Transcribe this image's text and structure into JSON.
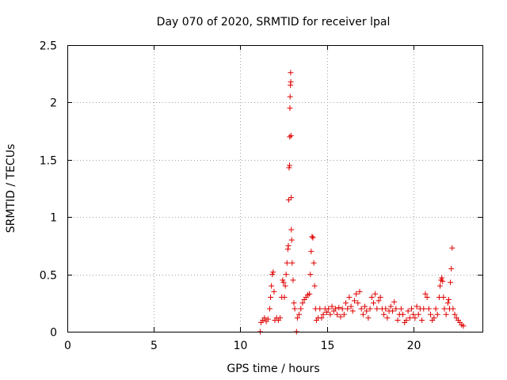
{
  "chart_data": {
    "type": "scatter",
    "title": "Day 070 of 2020, SRMTID for receiver lpal",
    "xlabel": "GPS time / hours",
    "ylabel": "SRMTID / TECUs",
    "xlim": [
      0,
      24
    ],
    "ylim": [
      0,
      2.5
    ],
    "xticks": [
      0,
      5,
      10,
      15,
      20
    ],
    "yticks": [
      0,
      0.5,
      1,
      1.5,
      2,
      2.5
    ],
    "xtick_labels": [
      "0",
      "5",
      "10",
      "15",
      "20"
    ],
    "ytick_labels": [
      "0",
      "0.5",
      "1",
      "1.5",
      "2",
      "2.5"
    ],
    "grid": true,
    "marker": "+",
    "color": "#e00000",
    "series": [
      {
        "name": "SRMTID",
        "points": [
          [
            11.15,
            0.0
          ],
          [
            11.2,
            0.08
          ],
          [
            11.3,
            0.1
          ],
          [
            11.4,
            0.12
          ],
          [
            11.5,
            0.09
          ],
          [
            11.6,
            0.11
          ],
          [
            11.7,
            0.2
          ],
          [
            11.75,
            0.3
          ],
          [
            11.8,
            0.4
          ],
          [
            11.85,
            0.5
          ],
          [
            11.9,
            0.52
          ],
          [
            11.95,
            0.35
          ],
          [
            12.0,
            0.1
          ],
          [
            12.1,
            0.12
          ],
          [
            12.2,
            0.1
          ],
          [
            12.3,
            0.12
          ],
          [
            12.4,
            0.3
          ],
          [
            12.45,
            0.45
          ],
          [
            12.5,
            0.43
          ],
          [
            12.55,
            0.3
          ],
          [
            12.6,
            0.4
          ],
          [
            12.65,
            0.5
          ],
          [
            12.7,
            0.6
          ],
          [
            12.75,
            0.72
          ],
          [
            12.78,
            0.75
          ],
          [
            12.8,
            1.15
          ],
          [
            12.82,
            1.43
          ],
          [
            12.85,
            1.45
          ],
          [
            12.86,
            1.7
          ],
          [
            12.87,
            1.95
          ],
          [
            12.88,
            2.05
          ],
          [
            12.9,
            2.15
          ],
          [
            12.91,
            2.26
          ],
          [
            12.92,
            2.18
          ],
          [
            12.93,
            1.71
          ],
          [
            12.94,
            1.17
          ],
          [
            12.95,
            0.89
          ],
          [
            12.97,
            0.8
          ],
          [
            13.0,
            0.6
          ],
          [
            13.05,
            0.45
          ],
          [
            13.1,
            0.25
          ],
          [
            13.15,
            0.2
          ],
          [
            13.25,
            0.0
          ],
          [
            13.3,
            0.12
          ],
          [
            13.4,
            0.15
          ],
          [
            13.5,
            0.2
          ],
          [
            13.6,
            0.25
          ],
          [
            13.7,
            0.28
          ],
          [
            13.8,
            0.3
          ],
          [
            13.9,
            0.32
          ],
          [
            14.0,
            0.33
          ],
          [
            14.05,
            0.5
          ],
          [
            14.1,
            0.7
          ],
          [
            14.15,
            0.83
          ],
          [
            14.2,
            0.82
          ],
          [
            14.25,
            0.6
          ],
          [
            14.3,
            0.4
          ],
          [
            14.35,
            0.2
          ],
          [
            14.4,
            0.1
          ],
          [
            14.5,
            0.12
          ],
          [
            14.6,
            0.2
          ],
          [
            14.7,
            0.12
          ],
          [
            14.8,
            0.15
          ],
          [
            14.9,
            0.2
          ],
          [
            15.0,
            0.17
          ],
          [
            15.1,
            0.2
          ],
          [
            15.2,
            0.15
          ],
          [
            15.3,
            0.22
          ],
          [
            15.4,
            0.18
          ],
          [
            15.5,
            0.2
          ],
          [
            15.6,
            0.15
          ],
          [
            15.7,
            0.21
          ],
          [
            15.8,
            0.13
          ],
          [
            15.9,
            0.2
          ],
          [
            16.0,
            0.15
          ],
          [
            16.1,
            0.25
          ],
          [
            16.2,
            0.2
          ],
          [
            16.3,
            0.3
          ],
          [
            16.4,
            0.22
          ],
          [
            16.5,
            0.18
          ],
          [
            16.6,
            0.27
          ],
          [
            16.7,
            0.33
          ],
          [
            16.8,
            0.25
          ],
          [
            16.9,
            0.35
          ],
          [
            17.0,
            0.2
          ],
          [
            17.1,
            0.15
          ],
          [
            17.2,
            0.22
          ],
          [
            17.3,
            0.18
          ],
          [
            17.4,
            0.12
          ],
          [
            17.5,
            0.2
          ],
          [
            17.6,
            0.3
          ],
          [
            17.7,
            0.25
          ],
          [
            17.8,
            0.33
          ],
          [
            17.9,
            0.2
          ],
          [
            18.0,
            0.27
          ],
          [
            18.1,
            0.3
          ],
          [
            18.2,
            0.2
          ],
          [
            18.3,
            0.15
          ],
          [
            18.4,
            0.2
          ],
          [
            18.5,
            0.12
          ],
          [
            18.6,
            0.18
          ],
          [
            18.7,
            0.22
          ],
          [
            18.8,
            0.18
          ],
          [
            18.9,
            0.26
          ],
          [
            19.0,
            0.2
          ],
          [
            19.1,
            0.1
          ],
          [
            19.2,
            0.15
          ],
          [
            19.3,
            0.2
          ],
          [
            19.4,
            0.15
          ],
          [
            19.5,
            0.08
          ],
          [
            19.6,
            0.1
          ],
          [
            19.7,
            0.18
          ],
          [
            19.8,
            0.12
          ],
          [
            19.9,
            0.2
          ],
          [
            20.0,
            0.15
          ],
          [
            20.1,
            0.12
          ],
          [
            20.2,
            0.22
          ],
          [
            20.3,
            0.15
          ],
          [
            20.4,
            0.2
          ],
          [
            20.5,
            0.1
          ],
          [
            20.6,
            0.2
          ],
          [
            20.7,
            0.33
          ],
          [
            20.8,
            0.3
          ],
          [
            20.9,
            0.2
          ],
          [
            21.0,
            0.15
          ],
          [
            21.1,
            0.1
          ],
          [
            21.2,
            0.12
          ],
          [
            21.3,
            0.2
          ],
          [
            21.4,
            0.15
          ],
          [
            21.5,
            0.3
          ],
          [
            21.55,
            0.4
          ],
          [
            21.6,
            0.45
          ],
          [
            21.65,
            0.47
          ],
          [
            21.7,
            0.44
          ],
          [
            21.75,
            0.3
          ],
          [
            21.8,
            0.2
          ],
          [
            21.9,
            0.15
          ],
          [
            22.0,
            0.25
          ],
          [
            22.05,
            0.28
          ],
          [
            22.1,
            0.2
          ],
          [
            22.15,
            0.43
          ],
          [
            22.2,
            0.55
          ],
          [
            22.25,
            0.73
          ],
          [
            22.3,
            0.2
          ],
          [
            22.4,
            0.15
          ],
          [
            22.5,
            0.12
          ],
          [
            22.6,
            0.1
          ],
          [
            22.7,
            0.08
          ],
          [
            22.8,
            0.06
          ],
          [
            22.9,
            0.05
          ]
        ]
      }
    ]
  }
}
